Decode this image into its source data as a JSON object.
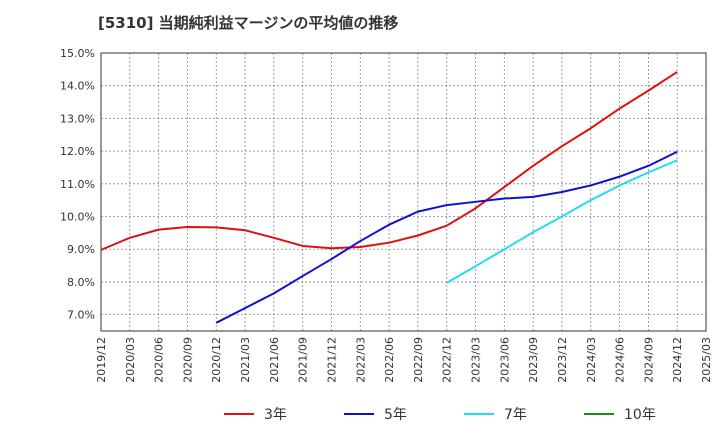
{
  "chart_data": {
    "type": "line",
    "title": "[5310]  当期純利益マージンの平均値の推移",
    "ylim": [
      6.5,
      15.0
    ],
    "y_ticks": [
      "7.0%",
      "8.0%",
      "9.0%",
      "10.0%",
      "11.0%",
      "12.0%",
      "13.0%",
      "14.0%",
      "15.0%"
    ],
    "y_tick_values": [
      7,
      8,
      9,
      10,
      11,
      12,
      13,
      14,
      15
    ],
    "x_ticks": [
      "2019/12",
      "2020/03",
      "2020/06",
      "2020/09",
      "2020/12",
      "2021/03",
      "2021/06",
      "2021/09",
      "2021/12",
      "2022/03",
      "2022/06",
      "2022/09",
      "2022/12",
      "2023/03",
      "2023/06",
      "2023/09",
      "2023/12",
      "2024/03",
      "2024/06",
      "2024/09",
      "2024/12",
      "2025/03"
    ],
    "grid": true,
    "legend_position": "bottom",
    "series": [
      {
        "name": "3年",
        "color": "#dd1111",
        "x": [
          "2019/12",
          "2020/03",
          "2020/06",
          "2020/09",
          "2020/12",
          "2021/03",
          "2021/06",
          "2021/09",
          "2021/12",
          "2022/03",
          "2022/06",
          "2022/09",
          "2022/12",
          "2023/03",
          "2023/06",
          "2023/09",
          "2023/12",
          "2024/03",
          "2024/06",
          "2024/09",
          "2024/12"
        ],
        "values": [
          8.98,
          9.35,
          9.6,
          9.68,
          9.67,
          9.58,
          9.35,
          9.1,
          9.03,
          9.07,
          9.2,
          9.42,
          9.72,
          10.25,
          10.9,
          11.55,
          12.15,
          12.7,
          13.3,
          13.85,
          14.42
        ]
      },
      {
        "name": "5年",
        "color": "#1111cc",
        "x": [
          "2020/12",
          "2021/03",
          "2021/06",
          "2021/09",
          "2021/12",
          "2022/03",
          "2022/06",
          "2022/09",
          "2022/12",
          "2023/03",
          "2023/06",
          "2023/09",
          "2023/12",
          "2024/03",
          "2024/06",
          "2024/09",
          "2024/12"
        ],
        "values": [
          6.75,
          7.2,
          7.65,
          8.18,
          8.7,
          9.25,
          9.75,
          10.15,
          10.35,
          10.45,
          10.55,
          10.6,
          10.75,
          10.95,
          11.22,
          11.55,
          11.98
        ]
      },
      {
        "name": "7年",
        "color": "#22ddee",
        "x": [
          "2022/12",
          "2023/03",
          "2023/06",
          "2023/09",
          "2023/12",
          "2024/03",
          "2024/06",
          "2024/09",
          "2024/12"
        ],
        "values": [
          7.97,
          8.48,
          9.0,
          9.52,
          10.0,
          10.5,
          10.95,
          11.35,
          11.72
        ]
      },
      {
        "name": "10年",
        "color": "#228822",
        "x": [],
        "values": []
      }
    ]
  }
}
